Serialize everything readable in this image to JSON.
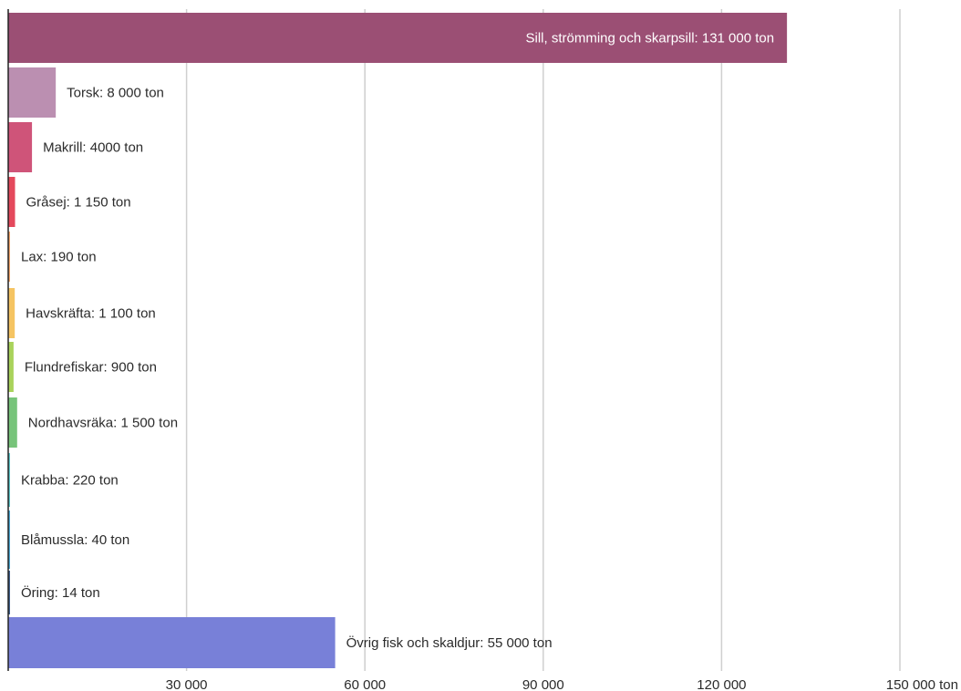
{
  "chart_data": {
    "type": "bar",
    "orientation": "horizontal",
    "xlim": [
      0,
      150000
    ],
    "ticks": [
      30000,
      60000,
      90000,
      120000,
      150000
    ],
    "tick_labels": [
      "30 000",
      "60 000",
      "90 000",
      "120 000",
      "150 000 ton"
    ],
    "grid": true,
    "bars": [
      {
        "value": 131000,
        "label": "Sill, strömming och skarpsill: 131 000 ton",
        "color": "#9b4f74",
        "label_inside": true
      },
      {
        "value": 8000,
        "label": "Torsk: 8 000 ton",
        "color": "#bb8fb1"
      },
      {
        "value": 4000,
        "label": "Makrill: 4000 ton",
        "color": "#cf5479"
      },
      {
        "value": 1150,
        "label": "Gråsej: 1 150 ton",
        "color": "#e4495c"
      },
      {
        "value": 190,
        "label": "Lax: 190 ton",
        "color": "#f0a36a"
      },
      {
        "value": 1100,
        "label": "Havskräfta: 1 100 ton",
        "color": "#f5c462"
      },
      {
        "value": 900,
        "label": "Flundrefiskar: 900 ton",
        "color": "#a9d35b"
      },
      {
        "value": 1500,
        "label": "Nordhavsräka: 1 500 ton",
        "color": "#77c47a"
      },
      {
        "value": 220,
        "label": "Krabba: 220 ton",
        "color": "#5cc3c6"
      },
      {
        "value": 40,
        "label": "Blåmussla: 40 ton",
        "color": "#4aa6cf"
      },
      {
        "value": 14,
        "label": "Öring: 14 ton",
        "color": "#3f5f8a"
      },
      {
        "value": 55000,
        "label": "Övrig fisk och skaldjur: 55 000 ton",
        "color": "#7880d8"
      }
    ]
  }
}
